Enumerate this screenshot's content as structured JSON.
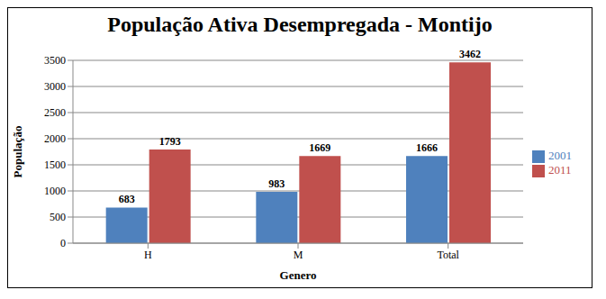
{
  "chart_data": {
    "type": "bar",
    "title": "População Ativa Desempregada - Montijo",
    "x_label": "Genero",
    "y_label": "População",
    "categories": [
      "H",
      "M",
      "Total"
    ],
    "series": [
      {
        "name": "2001",
        "color": "#4f81bd",
        "values": [
          683,
          983,
          1666
        ]
      },
      {
        "name": "2011",
        "color": "#c0504d",
        "values": [
          1793,
          1669,
          3462
        ]
      }
    ],
    "ylim": [
      0,
      3500
    ],
    "yticks": [
      0,
      500,
      1000,
      1500,
      2000,
      2500,
      3000,
      3500
    ],
    "grid": true,
    "legend": "right",
    "data_labels": true
  }
}
